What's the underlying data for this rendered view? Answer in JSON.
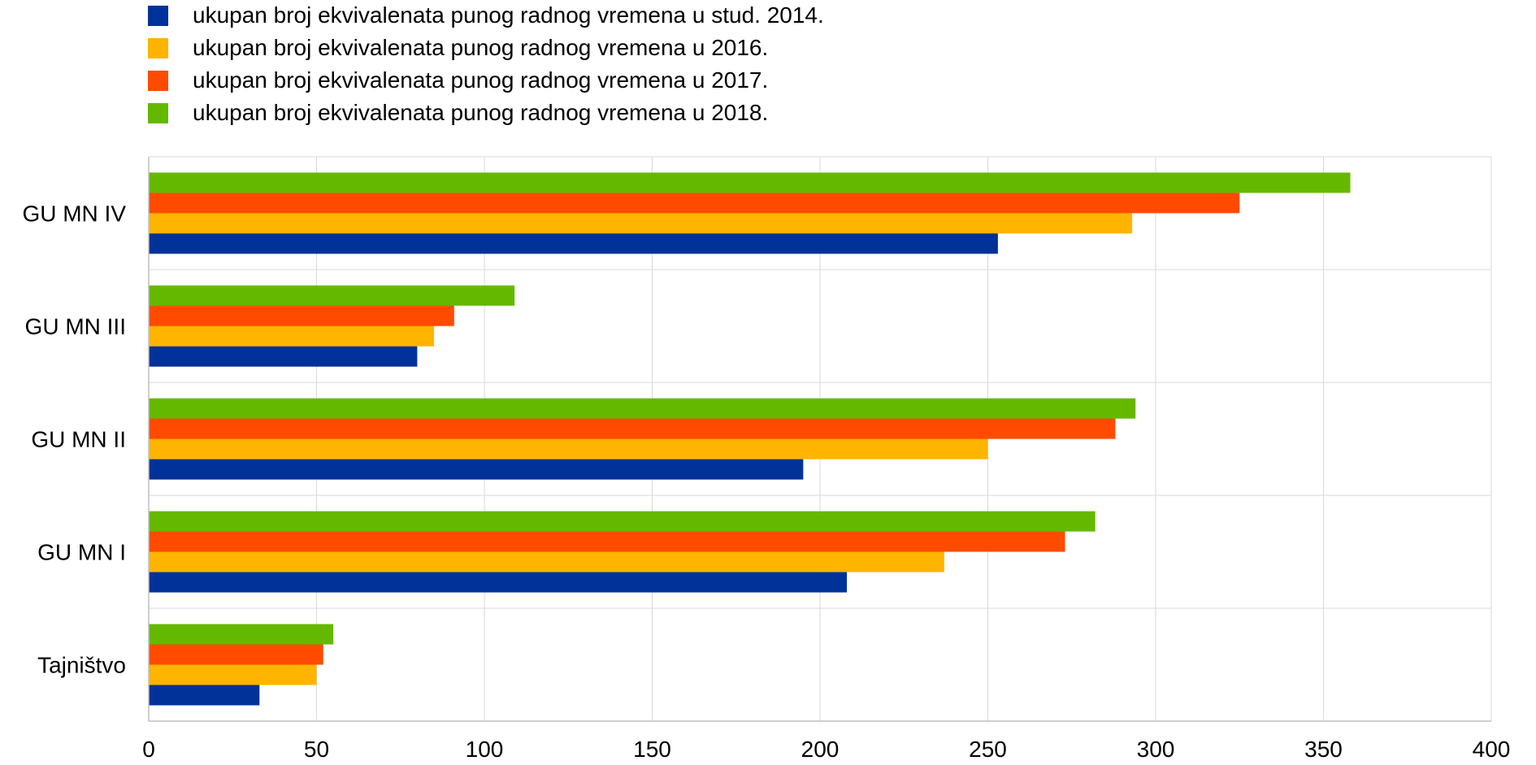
{
  "chart_data": {
    "type": "bar",
    "orientation": "horizontal",
    "categories": [
      "GU MN IV",
      "GU MN III",
      "GU MN II",
      "GU MN I",
      "Tajništvo"
    ],
    "series": [
      {
        "name": "ukupan broj ekvivalenata punog radnog vremena u stud. 2014.",
        "color": "#003299",
        "values": [
          253,
          80,
          195,
          208,
          33
        ]
      },
      {
        "name": "ukupan broj ekvivalenata punog radnog vremena u 2016.",
        "color": "#FFB400",
        "values": [
          293,
          85,
          250,
          237,
          50
        ]
      },
      {
        "name": "ukupan broj ekvivalenata punog radnog vremena u 2017.",
        "color": "#FF4B00",
        "values": [
          325,
          91,
          288,
          273,
          52
        ]
      },
      {
        "name": "ukupan broj ekvivalenata punog radnog vremena u 2018.",
        "color": "#65B800",
        "values": [
          358,
          109,
          294,
          282,
          55
        ]
      }
    ],
    "xlim": [
      0,
      400
    ],
    "xticks": [
      0,
      50,
      100,
      150,
      200,
      250,
      300,
      350,
      400
    ],
    "grid": true,
    "legend_position": "top-left"
  }
}
